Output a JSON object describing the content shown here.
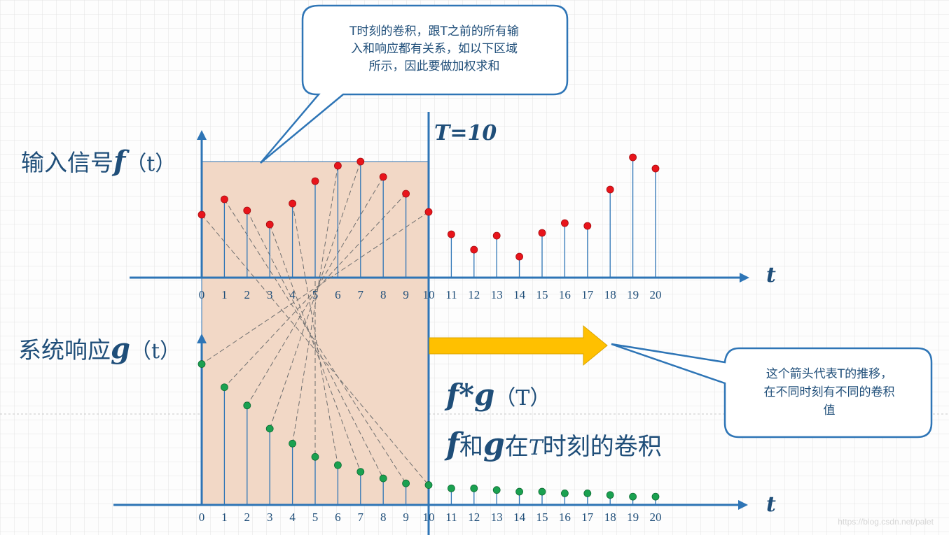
{
  "callout_top": {
    "lines": [
      "T时刻的卷积，跟T之前的所有输",
      "入和响应都有关系，如以下区域",
      "所示，因此要做加权求和"
    ]
  },
  "callout_right": {
    "lines": [
      "这个箭头代表T的推移，",
      "在不同时刻有不同的卷积",
      "值"
    ]
  },
  "time_marker_label": "T=10",
  "input_label": {
    "text": "输入信号",
    "symbol": "f",
    "arg": "（t）"
  },
  "response_label": {
    "text": "系统响应",
    "symbol": "g",
    "arg": "（t）"
  },
  "conv_expr": {
    "f": "f",
    "star": "*",
    "g": "g",
    "arg": "（T）"
  },
  "conv_desc": {
    "f": "f",
    "he": "和",
    "g": "g",
    "zai": "在",
    "T": "T",
    "rest": "时刻的卷积"
  },
  "axis_var": "t",
  "watermark": "https://blog.csdn.net/palet",
  "colors": {
    "axis": "#2e75b6",
    "input_dot": "#e8141b",
    "response_dot": "#1aa150",
    "shade": "#f2d8c6",
    "arrow": "#ffc000",
    "text": "#1f4e79"
  },
  "chart_data": {
    "type": "diagram-stem",
    "x": [
      0,
      1,
      2,
      3,
      4,
      5,
      6,
      7,
      8,
      9,
      10,
      11,
      12,
      13,
      14,
      15,
      16,
      17,
      18,
      19,
      20
    ],
    "tick_labels": [
      "0",
      "1",
      "2",
      "3",
      "4",
      "5",
      "6",
      "7",
      "8",
      "9",
      "10",
      "11",
      "12",
      "13",
      "14",
      "15",
      "16",
      "17",
      "18",
      "19",
      "20"
    ],
    "input": [
      0.45,
      0.56,
      0.48,
      0.38,
      0.53,
      0.69,
      0.8,
      0.83,
      0.72,
      0.6,
      0.47,
      0.31,
      0.2,
      0.3,
      0.15,
      0.32,
      0.39,
      0.37,
      0.63,
      0.86,
      0.78
    ],
    "response": [
      0.85,
      0.71,
      0.6,
      0.46,
      0.37,
      0.29,
      0.24,
      0.2,
      0.16,
      0.13,
      0.12,
      0.1,
      0.1,
      0.09,
      0.08,
      0.08,
      0.07,
      0.07,
      0.06,
      0.05,
      0.05
    ],
    "T": 10
  }
}
